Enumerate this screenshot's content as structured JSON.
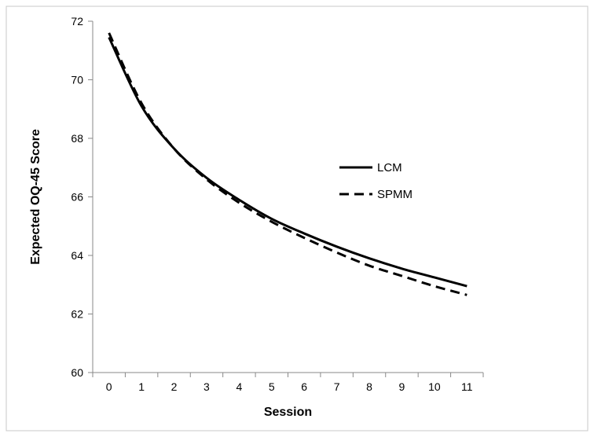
{
  "chart_data": {
    "type": "line",
    "title": "",
    "xlabel": "Session",
    "ylabel": "Expected OQ-45 Score",
    "x": [
      0,
      1,
      2,
      3,
      4,
      5,
      6,
      7,
      8,
      9,
      10,
      11
    ],
    "xlim": [
      -0.5,
      11.5
    ],
    "ylim": [
      60,
      72
    ],
    "yticks": [
      60,
      62,
      64,
      66,
      68,
      70,
      72
    ],
    "grid": false,
    "legend_position": "right",
    "series": [
      {
        "name": "LCM",
        "style": "solid",
        "color": "#000000",
        "values": [
          71.45,
          69.1,
          67.65,
          66.65,
          65.9,
          65.25,
          64.75,
          64.3,
          63.9,
          63.55,
          63.25,
          62.95
        ]
      },
      {
        "name": "SPMM",
        "style": "dashed",
        "color": "#000000",
        "values": [
          71.6,
          69.2,
          67.65,
          66.6,
          65.8,
          65.15,
          64.6,
          64.1,
          63.65,
          63.3,
          62.95,
          62.65
        ]
      }
    ]
  }
}
